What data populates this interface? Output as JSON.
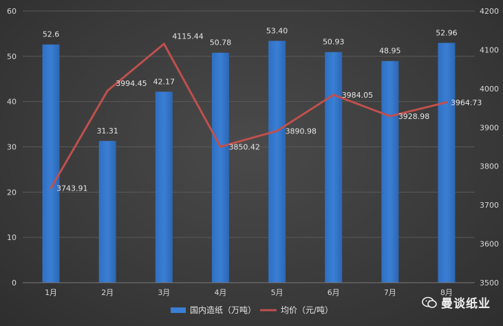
{
  "chart_data": {
    "type": "bar+line",
    "categories": [
      "1月",
      "2月",
      "3月",
      "4月",
      "5月",
      "6月",
      "7月",
      "8月"
    ],
    "series": [
      {
        "name": "国内造纸（万吨）",
        "type": "bar",
        "axis": "left",
        "color": "#3a7fd5",
        "values": [
          52.6,
          31.31,
          42.17,
          50.78,
          53.4,
          50.93,
          48.95,
          52.96
        ],
        "labels": [
          "52.6",
          "31.31",
          "42.17",
          "50.78",
          "53.40",
          "50.93",
          "48.95",
          "52.96"
        ]
      },
      {
        "name": "均价（元/吨）",
        "type": "line",
        "axis": "right",
        "color": "#c0504d",
        "values": [
          3743.91,
          3994.45,
          4115.44,
          3850.42,
          3890.98,
          3984.05,
          3928.98,
          3964.73
        ],
        "labels": [
          "3743.91",
          "3994.45",
          "4115.44",
          "3850.42",
          "3890.98",
          "3984.05",
          "3928.98",
          "3964.73"
        ]
      }
    ],
    "y_left": {
      "min": 0,
      "max": 60,
      "step": 10,
      "ticks": [
        "0",
        "10",
        "20",
        "30",
        "40",
        "50",
        "60"
      ]
    },
    "y_right": {
      "min": 3500,
      "max": 4200,
      "step": 100,
      "ticks": [
        "3500",
        "3600",
        "3700",
        "3800",
        "3900",
        "4000",
        "4100",
        "4200"
      ]
    },
    "grid": true,
    "legend": "bottom"
  },
  "watermark": {
    "text": "曼谈纸业",
    "icon": "wechat-icon"
  }
}
